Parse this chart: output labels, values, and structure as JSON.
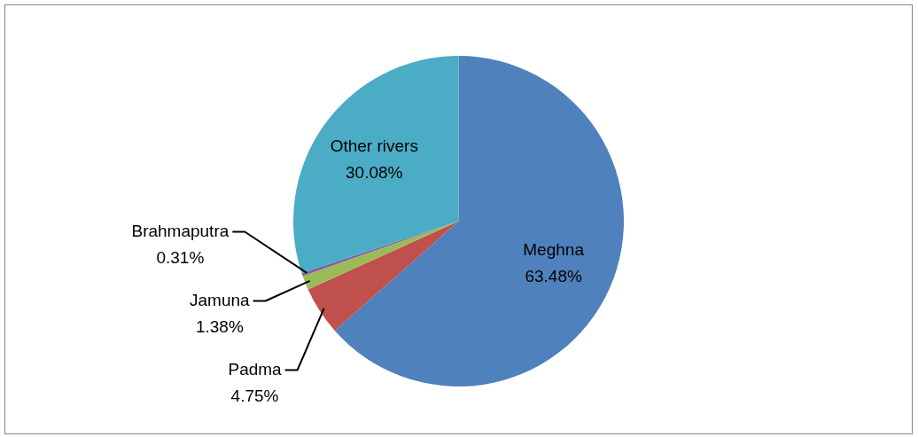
{
  "chart_data": {
    "type": "pie",
    "categories": [
      "Meghna",
      "Padma",
      "Jamuna",
      "Brahmaputra",
      "Other rivers"
    ],
    "values": [
      63.48,
      4.75,
      1.38,
      0.31,
      30.08
    ],
    "colors": [
      "#4f81bd",
      "#c0504d",
      "#9bbb59",
      "#8064a2",
      "#4bacc6"
    ],
    "value_labels": [
      "63.48%",
      "4.75%",
      "1.38%",
      "0.31%",
      "30.08%"
    ],
    "legend": false
  }
}
